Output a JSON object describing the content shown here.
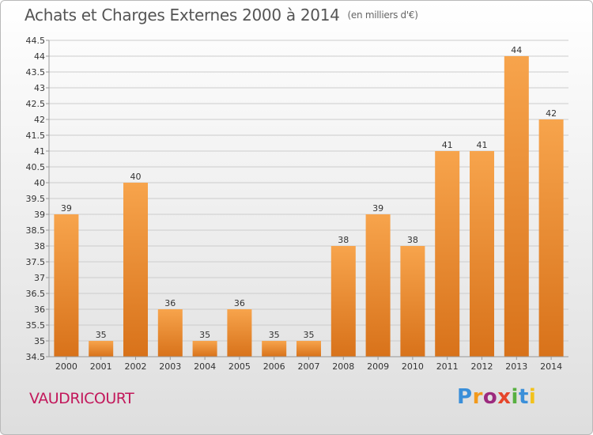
{
  "title": "Achats et Charges Externes 2000 à 2014",
  "subtitle": "(en milliers d'€)",
  "place_name": "VAUDRICOURT",
  "logo": {
    "letters": [
      "P",
      "r",
      "o",
      "x",
      "i",
      "t",
      "i"
    ],
    "colors": [
      "#3a8fd9",
      "#f29a1c",
      "#9c2a7e",
      "#e6462b",
      "#58b041",
      "#3a8fd9",
      "#f2c21c"
    ]
  },
  "colors": {
    "bar_top": "#f7a44c",
    "bar_bottom": "#d8721a",
    "grid": "#cccccc",
    "axis": "#999999"
  },
  "chart_data": {
    "type": "bar",
    "title": "Achats et Charges Externes 2000 à 2014",
    "subtitle": "(en milliers d'€)",
    "categories": [
      "2000",
      "2001",
      "2002",
      "2003",
      "2004",
      "2005",
      "2006",
      "2007",
      "2008",
      "2009",
      "2010",
      "2011",
      "2012",
      "2013",
      "2014"
    ],
    "values": [
      39,
      35,
      40,
      36,
      35,
      36,
      35,
      35,
      38,
      39,
      38,
      41,
      41,
      44,
      42
    ],
    "value_labels": [
      "39",
      "35",
      "40",
      "36",
      "35",
      "36",
      "35",
      "35",
      "38",
      "39",
      "38",
      "41",
      "41",
      "44",
      "42"
    ],
    "ylim": [
      34.5,
      44.5
    ],
    "yticks": [
      "34.5",
      "35",
      "35.5",
      "36",
      "36.5",
      "37",
      "37.5",
      "38",
      "38.5",
      "39",
      "39.5",
      "40",
      "40.5",
      "41",
      "41.5",
      "42",
      "42.5",
      "43",
      "43.5",
      "44",
      "44.5"
    ],
    "grid": true,
    "legend": "none"
  }
}
